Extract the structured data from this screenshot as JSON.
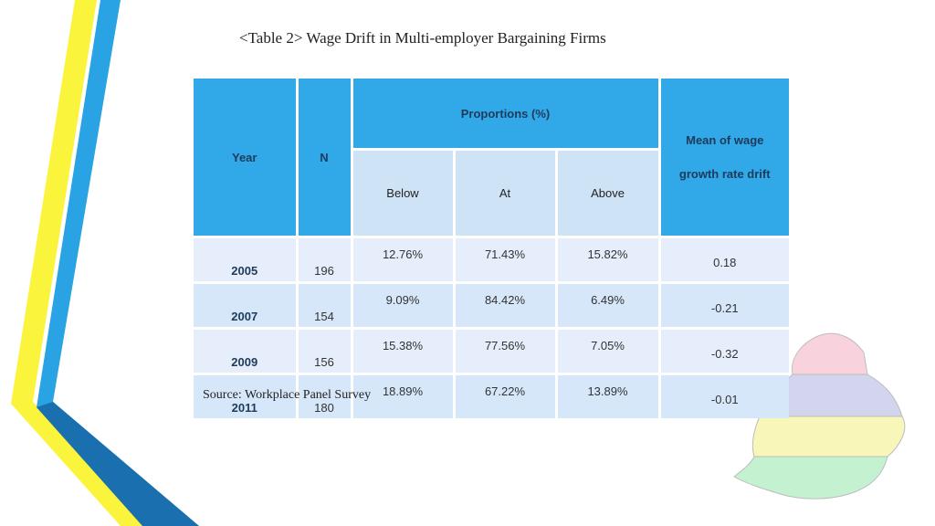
{
  "title": "<Table 2> Wage Drift in Multi-employer Bargaining Firms",
  "table": {
    "headers": {
      "year": "Year",
      "n": "N",
      "proportions": "Proportions (%)",
      "below": "Below",
      "at": "At",
      "above": "Above",
      "mean_line1": "Mean of wage",
      "mean_line2": "growth rate drift"
    },
    "rows": [
      {
        "year": "2005",
        "n": "196",
        "below": "12.76%",
        "at": "71.43%",
        "above": "15.82%",
        "mean": "0.18"
      },
      {
        "year": "2007",
        "n": "154",
        "below": "9.09%",
        "at": "84.42%",
        "above": "6.49%",
        "mean": "-0.21"
      },
      {
        "year": "2009",
        "n": "156",
        "below": "15.38%",
        "at": "77.56%",
        "above": "7.05%",
        "mean": "-0.32"
      },
      {
        "year": "2011",
        "n": "180",
        "below": "18.89%",
        "at": "67.22%",
        "above": "13.89%",
        "mean": "-0.01"
      }
    ]
  },
  "source": "Source: Workplace Panel Survey",
  "colors": {
    "header_blue": "#31a8e8",
    "row_light": "#e6eefb",
    "stripe_yellow": "#faf43c",
    "stripe_blue": "#29a3e3",
    "map_pink": "#f8d3dd",
    "map_lavender": "#d3d5ee",
    "map_yellow": "#f8f6b8",
    "map_green": "#c4f1d0"
  }
}
